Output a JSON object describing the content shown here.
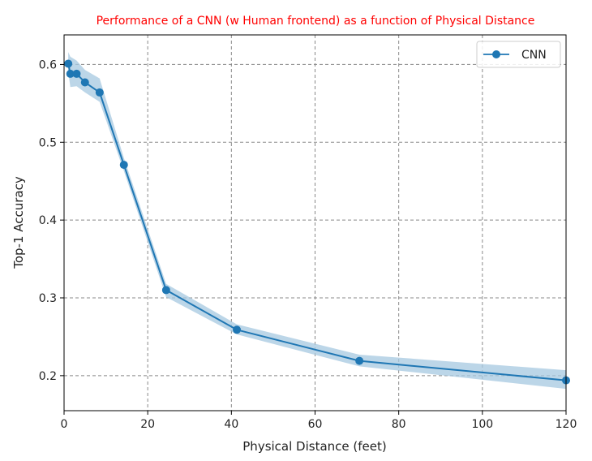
{
  "chart_data": {
    "type": "line",
    "title": "Performance of a CNN (w Human frontend) as a function of Physical Distance",
    "xlabel": "Physical Distance (feet)",
    "ylabel": "Top-1 Accuracy",
    "xlim": [
      0,
      120
    ],
    "ylim": [
      0.155,
      0.638
    ],
    "xticks": [
      0,
      20,
      40,
      60,
      80,
      100,
      120
    ],
    "yticks": [
      0.2,
      0.3,
      0.4,
      0.5,
      0.6
    ],
    "xtick_labels": [
      "0",
      "20",
      "40",
      "60",
      "80",
      "100",
      "120"
    ],
    "ytick_labels": [
      "0.2",
      "0.3",
      "0.4",
      "0.5",
      "0.6"
    ],
    "grid": true,
    "legend_position": "top-right",
    "series": [
      {
        "name": "CNN",
        "color": "#1f77b4",
        "band_color": "#a6c8e0",
        "marker": "circle",
        "x": [
          1,
          1.5,
          3,
          5,
          8.5,
          14.3,
          24.4,
          41.3,
          70.6,
          120
        ],
        "y": [
          0.601,
          0.588,
          0.588,
          0.577,
          0.564,
          0.471,
          0.31,
          0.259,
          0.219,
          0.194
        ],
        "band_lower": [
          0.59,
          0.571,
          0.572,
          0.564,
          0.552,
          0.463,
          0.301,
          0.253,
          0.212,
          0.183
        ],
        "band_upper": [
          0.616,
          0.61,
          0.605,
          0.593,
          0.582,
          0.48,
          0.318,
          0.266,
          0.227,
          0.207
        ]
      }
    ]
  },
  "colors": {
    "title": "#ff0000",
    "grid": "#888888",
    "axes": "#000000"
  }
}
